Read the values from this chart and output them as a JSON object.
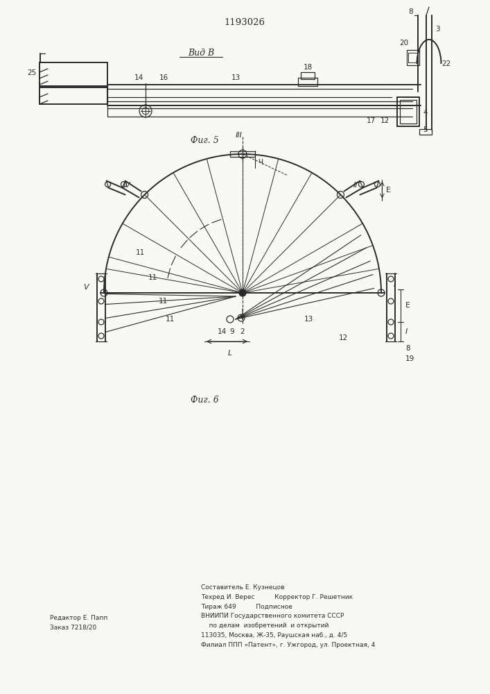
{
  "title": "1193026",
  "bg_color": "#f8f8f4",
  "line_color": "#2a2a2a",
  "fig5_label": "Фиг. 5",
  "fig6_label": "Фиг. 6",
  "view_label": "Вид В",
  "footer_left": "Редактор Е. Папп\nЗаказ 7218/20",
  "footer_center": "Составитель Е. Кузнецов\nТехред И. Верес          Корректор Г. Решетник\nТираж 649          Подписное\nВНИИПИ Государственного комитета СССР\n    по делам  изобретений  и открытий\n113035, Москва, Ж-35, Раушская наб., д. 4/5\nФилиал ППП «Патент», г. Ужгород, ул. Проектная, 4"
}
